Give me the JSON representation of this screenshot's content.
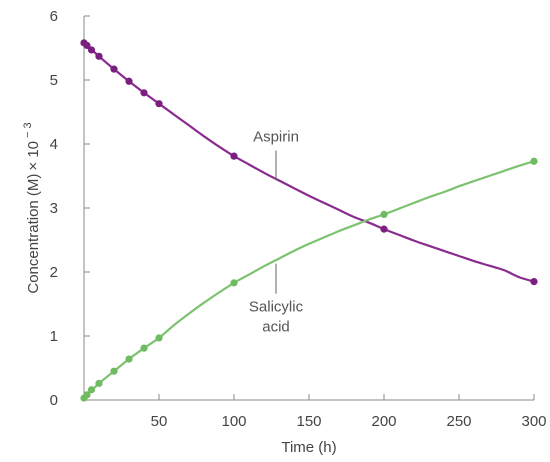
{
  "chart_data": {
    "type": "line",
    "title": "",
    "xlabel": "Time (h)",
    "ylabel_prefix": "Concentration (M)",
    "ylabel_suffix": "× 10",
    "ylabel_exponent": "− 3",
    "xlim": [
      0,
      300
    ],
    "ylim": [
      0,
      6
    ],
    "xticks": [
      50,
      100,
      150,
      200,
      250,
      300
    ],
    "xtick_labels": [
      "50",
      "100",
      "150",
      "200",
      "250",
      "300"
    ],
    "yticks": [
      0,
      1,
      2,
      3,
      4,
      5,
      6
    ],
    "ytick_labels": [
      "0",
      "1",
      "2",
      "3",
      "4",
      "5",
      "6"
    ],
    "grid": false,
    "series": [
      {
        "name": "Aspirin",
        "color": "#8b2a8f",
        "marker_color": "#7a1f7f",
        "x": [
          0,
          2,
          5,
          10,
          20,
          30,
          40,
          50,
          100,
          200,
          300
        ],
        "y": [
          5.58,
          5.54,
          5.47,
          5.37,
          5.17,
          4.98,
          4.8,
          4.63,
          3.81,
          2.67,
          1.85
        ],
        "curve_x": [
          0,
          10,
          20,
          30,
          40,
          50,
          60,
          70,
          80,
          90,
          100,
          110,
          120,
          130,
          140,
          150,
          160,
          170,
          180,
          190,
          200,
          210,
          220,
          230,
          240,
          250,
          260,
          270,
          280,
          290,
          300
        ],
        "curve_y": [
          5.58,
          5.37,
          5.17,
          4.98,
          4.8,
          4.63,
          4.46,
          4.29,
          4.12,
          3.96,
          3.81,
          3.68,
          3.55,
          3.43,
          3.31,
          3.19,
          3.08,
          2.97,
          2.86,
          2.77,
          2.67,
          2.58,
          2.49,
          2.41,
          2.33,
          2.25,
          2.17,
          2.1,
          2.03,
          1.92,
          1.85
        ]
      },
      {
        "name": "Salicylic acid",
        "color": "#7cc270",
        "marker_color": "#6fbb62",
        "x": [
          0,
          2,
          5,
          10,
          20,
          30,
          40,
          50,
          100,
          200,
          300
        ],
        "y": [
          0.03,
          0.08,
          0.16,
          0.26,
          0.45,
          0.64,
          0.81,
          0.97,
          1.83,
          2.9,
          3.73
        ],
        "curve_x": [
          0,
          10,
          20,
          30,
          40,
          50,
          60,
          70,
          80,
          90,
          100,
          110,
          120,
          130,
          140,
          150,
          160,
          170,
          180,
          190,
          200,
          210,
          220,
          230,
          240,
          250,
          260,
          270,
          280,
          290,
          300
        ],
        "curve_y": [
          0.03,
          0.26,
          0.45,
          0.64,
          0.81,
          0.97,
          1.17,
          1.35,
          1.52,
          1.68,
          1.83,
          1.96,
          2.09,
          2.21,
          2.33,
          2.44,
          2.54,
          2.64,
          2.73,
          2.82,
          2.9,
          2.99,
          3.08,
          3.17,
          3.25,
          3.34,
          3.42,
          3.5,
          3.58,
          3.66,
          3.73
        ]
      }
    ],
    "annotations": [
      {
        "lines": [
          "Aspirin"
        ],
        "series": "Aspirin",
        "x": 128,
        "y": 3.43
      },
      {
        "lines": [
          "Salicylic",
          "acid"
        ],
        "series": "Salicylic acid",
        "x": 128,
        "y": 2.13
      }
    ]
  }
}
